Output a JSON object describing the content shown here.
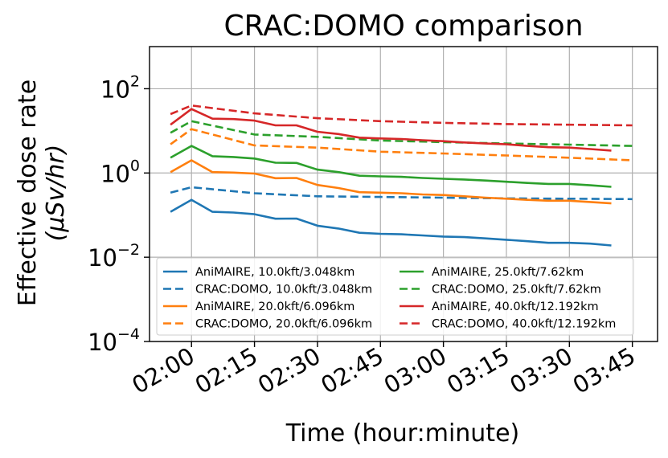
{
  "chart_data": {
    "type": "line",
    "title": "CRAC:DOMO comparison",
    "xlabel": "Time (hour:minute)",
    "ylabel_main": "Effective dose rate",
    "ylabel_units": "(μSv/hr)",
    "yscale": "log",
    "ylim": [
      0.0001,
      1000
    ],
    "xlim": [
      "01:50",
      "03:51"
    ],
    "grid": true,
    "legend_position": "lower-center",
    "legend_columns": 2,
    "x_ticks": [
      "02:00",
      "02:15",
      "02:30",
      "02:45",
      "03:00",
      "03:15",
      "03:30",
      "03:45"
    ],
    "y_ticks": [
      {
        "value": 0.0001,
        "base": "10",
        "exp": "−4"
      },
      {
        "value": 0.01,
        "base": "10",
        "exp": "−2"
      },
      {
        "value": 1,
        "label": "10",
        "exp": "0"
      },
      {
        "value": 100,
        "base": "10",
        "exp": "2"
      }
    ],
    "series": [
      {
        "name": "AniMAIRE, 10.0kft/3.048km",
        "color": "#1f77b4",
        "dash": "solid",
        "x": [
          "01:55",
          "02:00",
          "02:05",
          "02:10",
          "02:15",
          "02:20",
          "02:25",
          "02:30",
          "02:35",
          "02:40",
          "02:45",
          "02:50",
          "02:55",
          "03:00",
          "03:05",
          "03:10",
          "03:15",
          "03:20",
          "03:25",
          "03:30",
          "03:35",
          "03:40"
        ],
        "y": [
          0.12,
          0.23,
          0.12,
          0.115,
          0.105,
          0.082,
          0.083,
          0.056,
          0.048,
          0.038,
          0.036,
          0.035,
          0.033,
          0.031,
          0.03,
          0.028,
          0.026,
          0.024,
          0.022,
          0.022,
          0.021,
          0.019
        ]
      },
      {
        "name": "CRAC:DOMO, 10.0kft/3.048km",
        "color": "#1f77b4",
        "dash": "dashed",
        "x": [
          "01:55",
          "02:00",
          "02:15",
          "02:30",
          "02:45",
          "03:00",
          "03:15",
          "03:30",
          "03:45"
        ],
        "y": [
          0.34,
          0.46,
          0.33,
          0.28,
          0.27,
          0.26,
          0.25,
          0.245,
          0.24
        ]
      },
      {
        "name": "AniMAIRE, 20.0kft/6.096km",
        "color": "#ff7f0e",
        "dash": "solid",
        "x": [
          "01:55",
          "02:00",
          "02:05",
          "02:10",
          "02:15",
          "02:20",
          "02:25",
          "02:30",
          "02:35",
          "02:40",
          "02:45",
          "02:50",
          "02:55",
          "03:00",
          "03:05",
          "03:10",
          "03:15",
          "03:20",
          "03:25",
          "03:30",
          "03:35",
          "03:40"
        ],
        "y": [
          1.05,
          2.0,
          1.05,
          1.02,
          0.97,
          0.75,
          0.76,
          0.52,
          0.44,
          0.35,
          0.34,
          0.33,
          0.31,
          0.3,
          0.28,
          0.26,
          0.245,
          0.23,
          0.22,
          0.22,
          0.205,
          0.19
        ]
      },
      {
        "name": "CRAC:DOMO, 20.0kft/6.096km",
        "color": "#ff7f0e",
        "dash": "dashed",
        "x": [
          "01:55",
          "02:00",
          "02:15",
          "02:30",
          "02:45",
          "03:00",
          "03:15",
          "03:30",
          "03:45"
        ],
        "y": [
          4.8,
          11.0,
          4.5,
          4.0,
          3.2,
          2.9,
          2.6,
          2.3,
          2.0
        ]
      },
      {
        "name": "AniMAIRE, 25.0kft/7.62km",
        "color": "#2ca02c",
        "dash": "solid",
        "x": [
          "01:55",
          "02:00",
          "02:05",
          "02:10",
          "02:15",
          "02:20",
          "02:25",
          "02:30",
          "02:35",
          "02:40",
          "02:45",
          "02:50",
          "02:55",
          "03:00",
          "03:05",
          "03:10",
          "03:15",
          "03:20",
          "03:25",
          "03:30",
          "03:35",
          "03:40"
        ],
        "y": [
          2.3,
          4.4,
          2.5,
          2.4,
          2.2,
          1.75,
          1.73,
          1.2,
          1.05,
          0.86,
          0.83,
          0.81,
          0.76,
          0.73,
          0.7,
          0.66,
          0.62,
          0.58,
          0.55,
          0.55,
          0.51,
          0.47
        ]
      },
      {
        "name": "CRAC:DOMO, 25.0kft/7.62km",
        "color": "#2ca02c",
        "dash": "dashed",
        "x": [
          "01:55",
          "02:00",
          "02:15",
          "02:30",
          "02:45",
          "03:00",
          "03:15",
          "03:30",
          "03:45"
        ],
        "y": [
          9.0,
          17.0,
          8.2,
          7.2,
          5.9,
          5.4,
          5.0,
          4.7,
          4.4
        ]
      },
      {
        "name": "AniMAIRE, 40.0kft/12.192km",
        "color": "#d62728",
        "dash": "solid",
        "x": [
          "01:55",
          "02:00",
          "02:05",
          "02:10",
          "02:15",
          "02:20",
          "02:25",
          "02:30",
          "02:35",
          "02:40",
          "02:45",
          "02:50",
          "02:55",
          "03:00",
          "03:05",
          "03:10",
          "03:15",
          "03:20",
          "03:25",
          "03:30",
          "03:35",
          "03:40"
        ],
        "y": [
          14.0,
          33.0,
          19.5,
          19.0,
          17.5,
          13.5,
          13.5,
          9.5,
          8.4,
          6.9,
          6.6,
          6.4,
          6.0,
          5.7,
          5.3,
          5.0,
          4.8,
          4.4,
          4.1,
          4.0,
          3.7,
          3.4
        ]
      },
      {
        "name": "CRAC:DOMO, 40.0kft/12.192km",
        "color": "#d62728",
        "dash": "dashed",
        "x": [
          "01:55",
          "02:00",
          "02:15",
          "02:30",
          "02:45",
          "03:00",
          "03:15",
          "03:30",
          "03:45"
        ],
        "y": [
          25.0,
          40.0,
          26.0,
          20.0,
          17.0,
          15.5,
          14.5,
          14.0,
          13.5
        ]
      }
    ]
  }
}
